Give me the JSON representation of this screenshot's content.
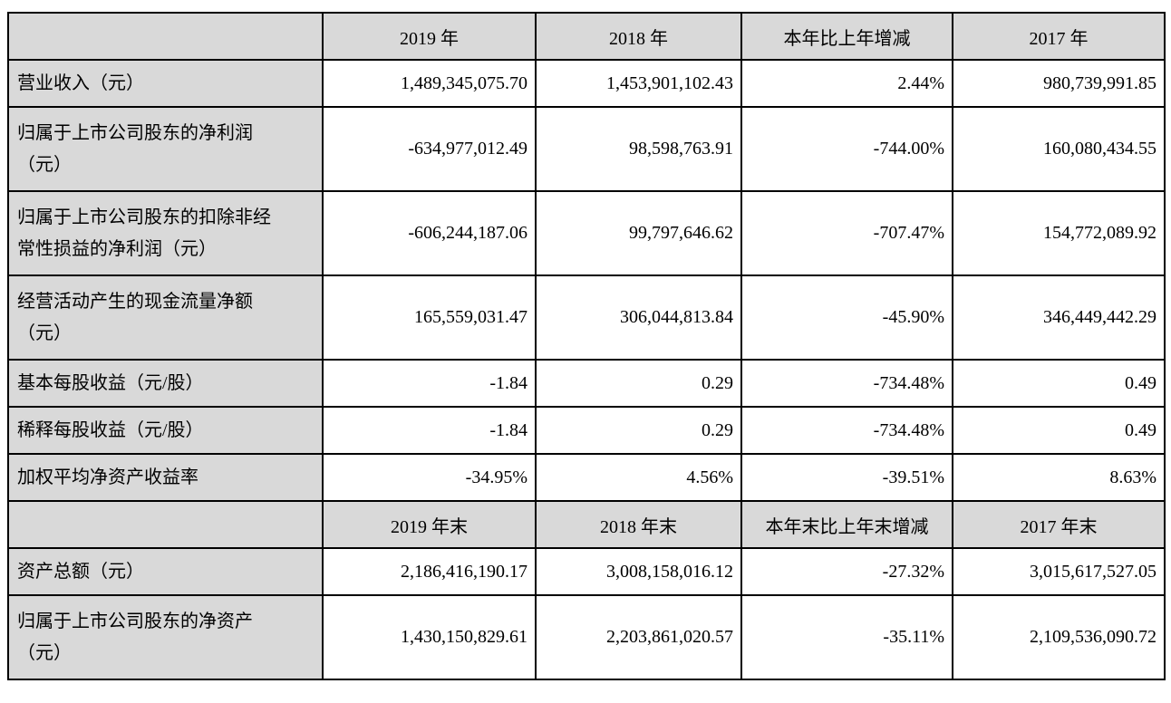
{
  "table": {
    "grid_color": "#000000",
    "shaded_bg": "#d9d9d9",
    "text_color": "#000000",
    "sections": [
      {
        "headers": [
          "",
          "2019 年",
          "2018 年",
          "本年比上年增减",
          "2017 年"
        ],
        "rows": [
          {
            "label": "营业收入（元）",
            "values": [
              "1,489,345,075.70",
              "1,453,901,102.43",
              "2.44%",
              "980,739,991.85"
            ]
          },
          {
            "label": "归属于上市公司股东的净利润\n（元）",
            "values": [
              "-634,977,012.49",
              "98,598,763.91",
              "-744.00%",
              "160,080,434.55"
            ]
          },
          {
            "label": "归属于上市公司股东的扣除非经\n常性损益的净利润（元）",
            "values": [
              "-606,244,187.06",
              "99,797,646.62",
              "-707.47%",
              "154,772,089.92"
            ]
          },
          {
            "label": "经营活动产生的现金流量净额\n（元）",
            "values": [
              "165,559,031.47",
              "306,044,813.84",
              "-45.90%",
              "346,449,442.29"
            ]
          },
          {
            "label": "基本每股收益（元/股）",
            "values": [
              "-1.84",
              "0.29",
              "-734.48%",
              "0.49"
            ]
          },
          {
            "label": "稀释每股收益（元/股）",
            "values": [
              "-1.84",
              "0.29",
              "-734.48%",
              "0.49"
            ]
          },
          {
            "label": "加权平均净资产收益率",
            "values": [
              "-34.95%",
              "4.56%",
              "-39.51%",
              "8.63%"
            ]
          }
        ]
      },
      {
        "headers": [
          "",
          "2019 年末",
          "2018 年末",
          "本年末比上年末增减",
          "2017 年末"
        ],
        "rows": [
          {
            "label": "资产总额（元）",
            "values": [
              "2,186,416,190.17",
              "3,008,158,016.12",
              "-27.32%",
              "3,015,617,527.05"
            ]
          },
          {
            "label": "归属于上市公司股东的净资产\n（元）",
            "values": [
              "1,430,150,829.61",
              "2,203,861,020.57",
              "-35.11%",
              "2,109,536,090.72"
            ]
          }
        ]
      }
    ]
  }
}
